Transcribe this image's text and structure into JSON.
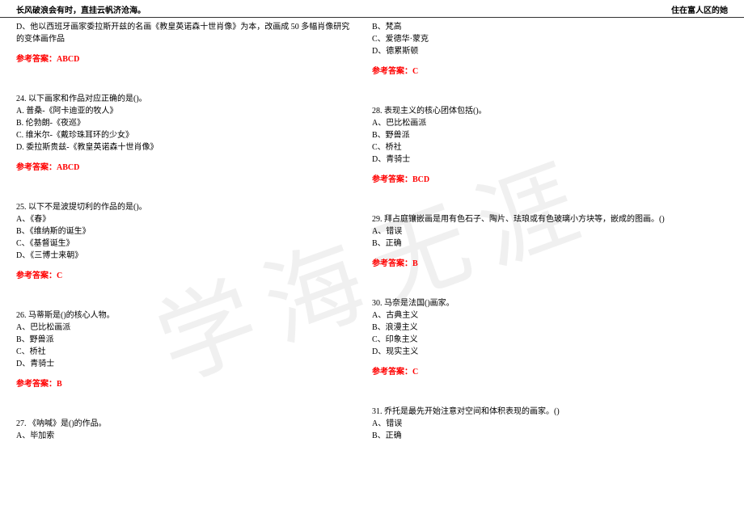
{
  "header": {
    "left": "长风破浪会有时，直挂云帆济沧海。",
    "right": "住在富人区的她"
  },
  "watermark": "学海无涯",
  "answer_label": "参考答案：",
  "text_color": "#000000",
  "answer_color": "#ff0000",
  "background_color": "#ffffff",
  "left_column": {
    "intro_line": "D、他以西班牙画家委拉斯开兹的名画《教皇英诺森十世肖像》为本，改画成 50 多幅肖像研究的变体画作品",
    "intro_answer": "ABCD",
    "questions": [
      {
        "q": "24. 以下画家和作品对应正确的是()。",
        "options": [
          "A. 普桑-《阿卡迪亚的牧人》",
          "B. 伦勃朗-《夜巡》",
          "C. 维米尔-《戴珍珠耳环的少女》",
          "D. 委拉斯贵兹-《教皇英诺森十世肖像》"
        ],
        "answer": "ABCD"
      },
      {
        "q": "25. 以下不是波提切利的作品的是()。",
        "options": [
          "A、《春》",
          "B、《维纳斯的诞生》",
          "C、《基督诞生》",
          "D、《三博士来朝》"
        ],
        "answer": "C"
      },
      {
        "q": "26. 马蒂斯是()的核心人物。",
        "options": [
          "A、巴比松画派",
          "B、野兽派",
          "C、桥社",
          "D、青骑士"
        ],
        "answer": "B"
      },
      {
        "q": "27. 《呐喊》是()的作品。",
        "options": [
          "A、毕加索"
        ],
        "answer": null
      }
    ]
  },
  "right_column": {
    "intro_options": [
      "B、梵高",
      "C、爱德华·蒙克",
      "D、德累斯顿"
    ],
    "intro_answer": "C",
    "questions": [
      {
        "q": "28. 表现主义的核心团体包括()。",
        "options": [
          "A、巴比松画派",
          "B、野兽派",
          "C、桥社",
          "D、青骑士"
        ],
        "answer": "BCD"
      },
      {
        "q": "29. 拜占庭镶嵌画是用有色石子、陶片、珐琅或有色玻璃小方块等，嵌成的图画。()",
        "options": [
          "A、错误",
          "B、正确"
        ],
        "answer": "B"
      },
      {
        "q": "30. 马奈是法国()画家。",
        "options": [
          "A、古典主义",
          "B、浪漫主义",
          "C、印象主义",
          "D、现实主义"
        ],
        "answer": "C"
      },
      {
        "q": "31. 乔托是最先开始注意对空间和体积表现的画家。()",
        "options": [
          "A、错误",
          "B、正确"
        ],
        "answer": null
      }
    ]
  }
}
